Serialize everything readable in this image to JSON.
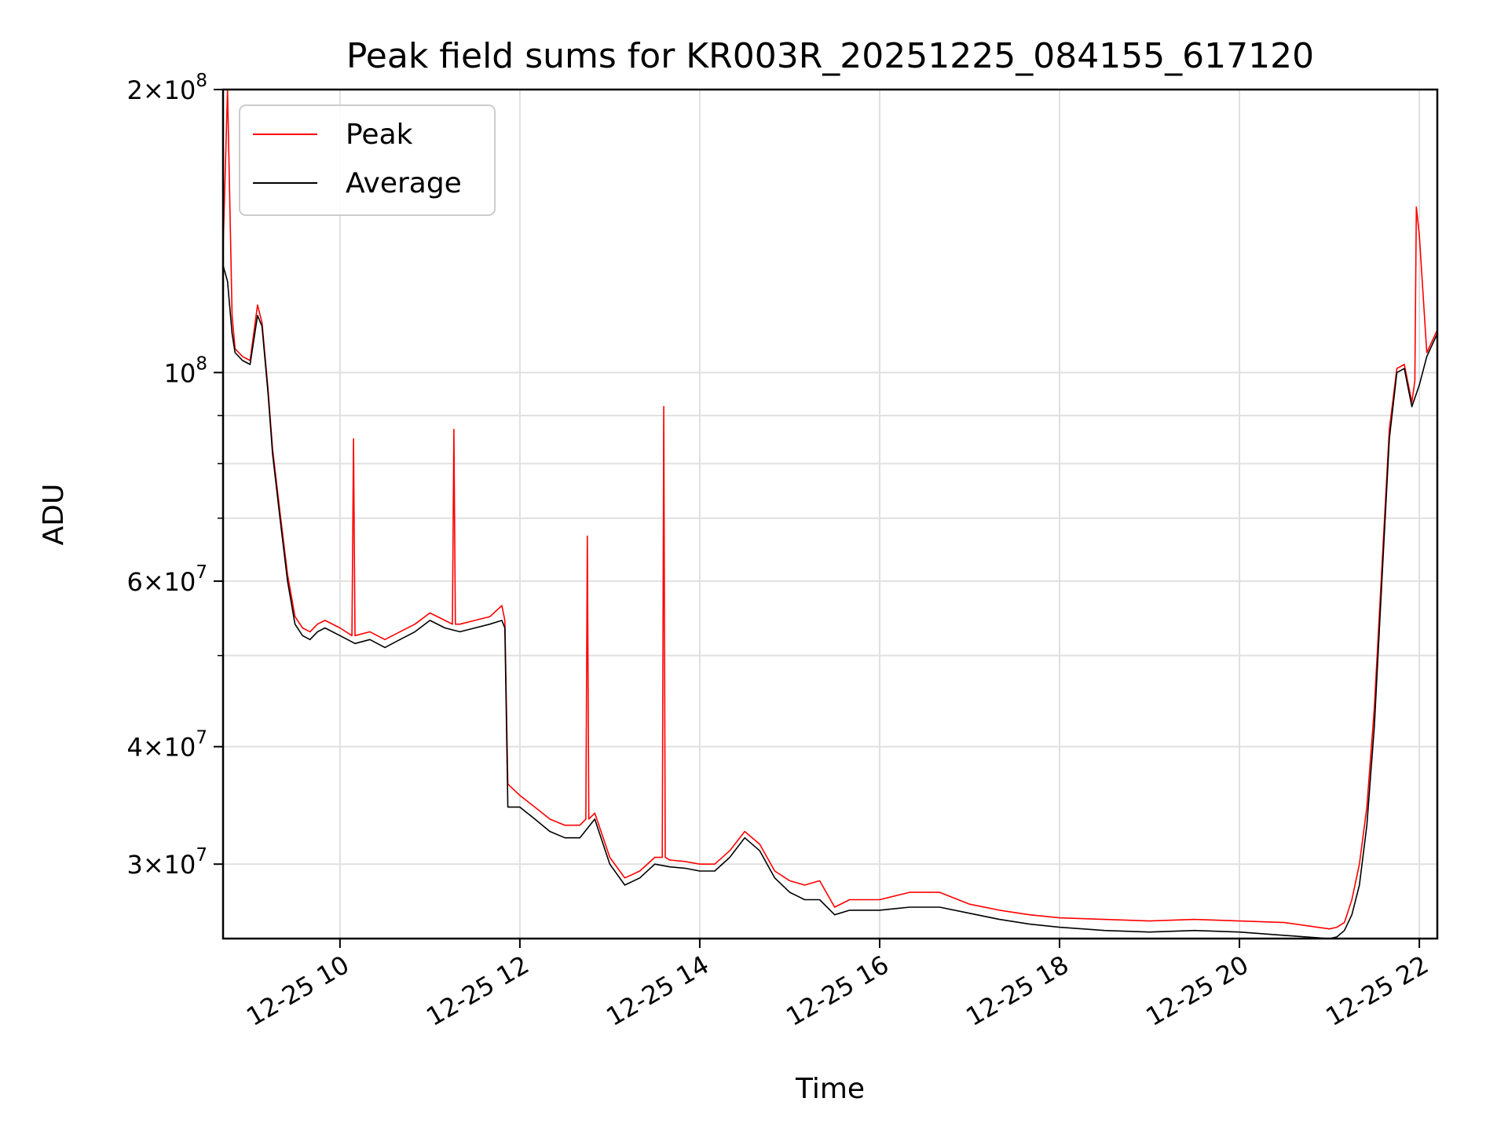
{
  "chart_data": {
    "type": "line",
    "title": "Peak field sums for KR003R_20251225_084155_617120",
    "xlabel": "Time",
    "ylabel": "ADU",
    "yscale": "log",
    "ylim": [
      25000000,
      200000000
    ],
    "xlim": [
      "12-25 08:42",
      "12-25 22:12"
    ],
    "grid": true,
    "legend_position": "top-left",
    "x_ticks": [
      "12-25 10",
      "12-25 12",
      "12-25 14",
      "12-25 16",
      "12-25 18",
      "12-25 20",
      "12-25 22"
    ],
    "y_ticks": [
      {
        "value": 200000000,
        "mant": "2",
        "exp": "8"
      },
      {
        "value": 100000000,
        "mant": "",
        "exp": "8"
      },
      {
        "value": 60000000,
        "mant": "6",
        "exp": "7"
      },
      {
        "value": 40000000,
        "mant": "4",
        "exp": "7"
      },
      {
        "value": 30000000,
        "mant": "3",
        "exp": "7"
      }
    ],
    "y_minor": [
      50000000,
      70000000,
      80000000,
      90000000
    ],
    "colors": {
      "Peak": "#ff0000",
      "Average": "#000000"
    },
    "series": [
      {
        "name": "Average",
        "x": [
          "12-25 08:42",
          "12-25 08:45",
          "12-25 08:48",
          "12-25 08:50",
          "12-25 08:55",
          "12-25 09:00",
          "12-25 09:05",
          "12-25 09:08",
          "12-25 09:12",
          "12-25 09:15",
          "12-25 09:20",
          "12-25 09:25",
          "12-25 09:30",
          "12-25 09:35",
          "12-25 09:40",
          "12-25 09:45",
          "12-25 09:50",
          "12-25 10:00",
          "12-25 10:10",
          "12-25 10:20",
          "12-25 10:30",
          "12-25 10:40",
          "12-25 10:50",
          "12-25 11:00",
          "12-25 11:10",
          "12-25 11:20",
          "12-25 11:30",
          "12-25 11:40",
          "12-25 11:48",
          "12-25 11:50",
          "12-25 11:52",
          "12-25 12:00",
          "12-25 12:10",
          "12-25 12:20",
          "12-25 12:30",
          "12-25 12:40",
          "12-25 12:50",
          "12-25 13:00",
          "12-25 13:10",
          "12-25 13:20",
          "12-25 13:30",
          "12-25 13:40",
          "12-25 13:50",
          "12-25 14:00",
          "12-25 14:10",
          "12-25 14:20",
          "12-25 14:30",
          "12-25 14:40",
          "12-25 14:50",
          "12-25 15:00",
          "12-25 15:10",
          "12-25 15:20",
          "12-25 15:30",
          "12-25 15:40",
          "12-25 16:00",
          "12-25 16:20",
          "12-25 16:40",
          "12-25 17:00",
          "12-25 17:20",
          "12-25 17:40",
          "12-25 18:00",
          "12-25 18:30",
          "12-25 19:00",
          "12-25 19:30",
          "12-25 20:00",
          "12-25 20:30",
          "12-25 21:00",
          "12-25 21:05",
          "12-25 21:10",
          "12-25 21:15",
          "12-25 21:20",
          "12-25 21:25",
          "12-25 21:30",
          "12-25 21:35",
          "12-25 21:40",
          "12-25 21:45",
          "12-25 21:50",
          "12-25 21:55",
          "12-25 22:00",
          "12-25 22:05",
          "12-25 22:12"
        ],
        "y": [
          130000000,
          125000000,
          110000000,
          105000000,
          103000000,
          102000000,
          115000000,
          112000000,
          95000000,
          82000000,
          70000000,
          60000000,
          54000000,
          52500000,
          52000000,
          53000000,
          53500000,
          52500000,
          51500000,
          52000000,
          51000000,
          52000000,
          53000000,
          54500000,
          53500000,
          53000000,
          53500000,
          54000000,
          54500000,
          53500000,
          34500000,
          34500000,
          33500000,
          32500000,
          32000000,
          32000000,
          33500000,
          30000000,
          28500000,
          29000000,
          30000000,
          29800000,
          29700000,
          29500000,
          29500000,
          30500000,
          32000000,
          31000000,
          29000000,
          28000000,
          27500000,
          27500000,
          26500000,
          26800000,
          26800000,
          27000000,
          27000000,
          26600000,
          26200000,
          25900000,
          25700000,
          25500000,
          25400000,
          25500000,
          25400000,
          25200000,
          25000000,
          25100000,
          25500000,
          26500000,
          28500000,
          33000000,
          42000000,
          60000000,
          85000000,
          100000000,
          101000000,
          92000000,
          97000000,
          104000000,
          110000000
        ]
      },
      {
        "name": "Peak",
        "x": [
          "12-25 08:42",
          "12-25 08:45",
          "12-25 08:48",
          "12-25 08:50",
          "12-25 08:55",
          "12-25 09:00",
          "12-25 09:05",
          "12-25 09:08",
          "12-25 09:12",
          "12-25 09:15",
          "12-25 09:20",
          "12-25 09:25",
          "12-25 09:30",
          "12-25 09:35",
          "12-25 09:40",
          "12-25 09:45",
          "12-25 09:50",
          "12-25 10:00",
          "12-25 10:08",
          "12-25 10:09",
          "12-25 10:10",
          "12-25 10:20",
          "12-25 10:30",
          "12-25 10:40",
          "12-25 10:50",
          "12-25 11:00",
          "12-25 11:10",
          "12-25 11:15",
          "12-25 11:16",
          "12-25 11:17",
          "12-25 11:20",
          "12-25 11:30",
          "12-25 11:40",
          "12-25 11:48",
          "12-25 11:50",
          "12-25 11:52",
          "12-25 12:00",
          "12-25 12:10",
          "12-25 12:20",
          "12-25 12:30",
          "12-25 12:40",
          "12-25 12:44",
          "12-25 12:45",
          "12-25 12:46",
          "12-25 12:50",
          "12-25 13:00",
          "12-25 13:10",
          "12-25 13:20",
          "12-25 13:30",
          "12-25 13:35",
          "12-25 13:36",
          "12-25 13:37",
          "12-25 13:40",
          "12-25 13:50",
          "12-25 14:00",
          "12-25 14:10",
          "12-25 14:20",
          "12-25 14:30",
          "12-25 14:40",
          "12-25 14:50",
          "12-25 15:00",
          "12-25 15:10",
          "12-25 15:20",
          "12-25 15:30",
          "12-25 15:40",
          "12-25 16:00",
          "12-25 16:20",
          "12-25 16:40",
          "12-25 17:00",
          "12-25 17:20",
          "12-25 17:40",
          "12-25 18:00",
          "12-25 18:30",
          "12-25 19:00",
          "12-25 19:30",
          "12-25 20:00",
          "12-25 20:30",
          "12-25 21:00",
          "12-25 21:05",
          "12-25 21:10",
          "12-25 21:15",
          "12-25 21:20",
          "12-25 21:25",
          "12-25 21:30",
          "12-25 21:35",
          "12-25 21:40",
          "12-25 21:45",
          "12-25 21:50",
          "12-25 21:55",
          "12-25 21:57",
          "12-25 21:58",
          "12-25 22:00",
          "12-25 22:05",
          "12-25 22:12"
        ],
        "y": [
          135000000,
          200000000,
          115000000,
          106000000,
          104000000,
          103000000,
          118000000,
          113000000,
          96000000,
          83000000,
          71000000,
          61000000,
          55000000,
          53500000,
          53000000,
          54000000,
          54500000,
          53500000,
          52500000,
          85000000,
          52500000,
          53000000,
          52000000,
          53000000,
          54000000,
          55500000,
          54500000,
          54000000,
          87000000,
          54000000,
          54000000,
          54500000,
          55000000,
          56500000,
          54500000,
          36500000,
          35500000,
          34500000,
          33500000,
          33000000,
          33000000,
          33500000,
          67000000,
          33500000,
          34000000,
          30500000,
          29000000,
          29500000,
          30500000,
          30500000,
          92000000,
          30500000,
          30300000,
          30200000,
          30000000,
          30000000,
          31000000,
          32500000,
          31500000,
          29500000,
          28800000,
          28500000,
          28800000,
          27000000,
          27500000,
          27500000,
          28000000,
          28000000,
          27200000,
          26800000,
          26500000,
          26300000,
          26200000,
          26100000,
          26200000,
          26100000,
          26000000,
          25600000,
          25700000,
          26000000,
          27500000,
          30000000,
          34500000,
          44000000,
          62000000,
          87000000,
          101000000,
          102000000,
          93000000,
          98000000,
          150000000,
          140000000,
          105000000,
          111000000
        ]
      }
    ]
  }
}
